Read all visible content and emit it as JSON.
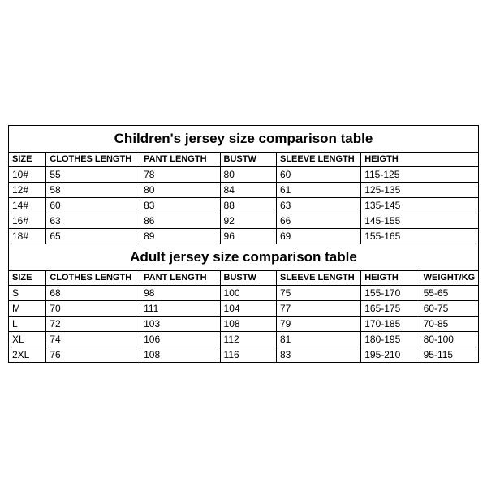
{
  "background_color": "#ffffff",
  "border_color": "#000000",
  "font_family": "Arial, sans-serif",
  "children_table": {
    "title": "Children's jersey size comparison table",
    "columns": [
      "SIZE",
      "CLOTHES LENGTH",
      "PANT LENGTH",
      "BUSTW",
      "SLEEVE LENGTH",
      "HEIGTH"
    ],
    "rows": [
      {
        "size": "10#",
        "clothes_length": "55",
        "pant_length": "78",
        "bustw": "80",
        "sleeve_length": "60",
        "height": "115-125"
      },
      {
        "size": "12#",
        "clothes_length": "58",
        "pant_length": "80",
        "bustw": "84",
        "sleeve_length": "61",
        "height": "125-135"
      },
      {
        "size": "14#",
        "clothes_length": "60",
        "pant_length": "83",
        "bustw": "88",
        "sleeve_length": "63",
        "height": "135-145"
      },
      {
        "size": "16#",
        "clothes_length": "63",
        "pant_length": "86",
        "bustw": "92",
        "sleeve_length": "66",
        "height": "145-155"
      },
      {
        "size": "18#",
        "clothes_length": "65",
        "pant_length": "89",
        "bustw": "96",
        "sleeve_length": "69",
        "height": "155-165"
      }
    ]
  },
  "adult_table": {
    "title": "Adult jersey size comparison table",
    "columns": [
      "SIZE",
      "CLOTHES LENGTH",
      "PANT LENGTH",
      "BUSTW",
      "SLEEVE LENGTH",
      "HEIGTH",
      "WEIGHT/KG"
    ],
    "rows": [
      {
        "size": "S",
        "clothes_length": "68",
        "pant_length": "98",
        "bustw": "100",
        "sleeve_length": "75",
        "height": "155-170",
        "weight": "55-65"
      },
      {
        "size": "M",
        "clothes_length": "70",
        "pant_length": "111",
        "bustw": "104",
        "sleeve_length": "77",
        "height": "165-175",
        "weight": "60-75"
      },
      {
        "size": "L",
        "clothes_length": "72",
        "pant_length": "103",
        "bustw": "108",
        "sleeve_length": "79",
        "height": "170-185",
        "weight": "70-85"
      },
      {
        "size": "XL",
        "clothes_length": "74",
        "pant_length": "106",
        "bustw": "112",
        "sleeve_length": "81",
        "height": "180-195",
        "weight": "80-100"
      },
      {
        "size": "2XL",
        "clothes_length": "76",
        "pant_length": "108",
        "bustw": "116",
        "sleeve_length": "83",
        "height": "195-210",
        "weight": "95-115"
      }
    ]
  }
}
